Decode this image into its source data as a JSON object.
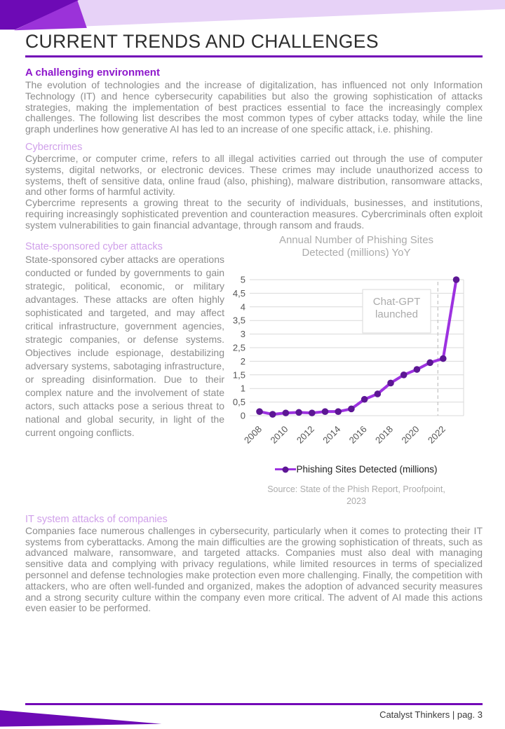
{
  "header": {
    "title": "CURRENT TRENDS AND CHALLENGES"
  },
  "sections": [
    {
      "heading": "A challenging environment",
      "paragraphs": [
        "The evolution of technologies and the increase of digitalization, has influenced not only Information Technology (IT) and hence cybersecurity capabilities but also the growing sophistication of attacks strategies, making the implementation of best practices essential to face the increasingly complex challenges. The following list describes the most common types of cyber attacks today, while the line graph underlines how generative AI has led to an increase of one specific attack, i.e. phishing."
      ]
    },
    {
      "heading": "Cybercrimes",
      "paragraphs": [
        "Cybercrime, or computer crime, refers to all illegal activities carried out through the use of computer systems, digital networks, or electronic devices. These crimes may include unauthorized access to systems, theft of sensitive data, online fraud (also, phishing), malware distribution, ransomware attacks, and other forms of harmful activity.",
        "Cybercrime represents a growing threat to the security of individuals, businesses, and institutions, requiring increasingly sophisticated prevention and counteraction measures. Cybercriminals often exploit system vulnerabilities to gain financial advantage, through ransom and frauds."
      ]
    },
    {
      "heading": "State-sponsored cyber attacks",
      "paragraphs": [
        "State-sponsored cyber attacks are operations conducted or funded by governments to gain strategic, political, economic, or military advantages. These attacks are often highly sophisticated and targeted, and may affect critical infrastructure, government agencies, strategic companies, or defense systems. Objectives include espionage, destabilizing adversary systems, sabotaging infrastructure, or spreading disinformation. Due to their complex nature and the involvement of state actors, such attacks pose a serious threat to national and global security, in light of the current ongoing conflicts."
      ]
    },
    {
      "heading": "IT system attacks of companies",
      "paragraphs": [
        "Companies face numerous challenges in cybersecurity, particularly when it comes to protecting their IT systems from cyberattacks. Among the main difficulties are the growing sophistication of threats, such as advanced malware, ransomware, and targeted attacks. Companies must also deal with managing sensitive data and complying with privacy regulations, while limited resources in terms of specialized personnel and defense technologies make protection even more challenging. Finally, the competition with attackers, who are often well-funded and organized, makes the adoption of advanced security measures and a strong security culture within the company even more critical. The advent of AI made this actions even easier to be performed."
      ]
    }
  ],
  "chart_data": {
    "type": "line",
    "title_lines": [
      "Annual Number of Phishing Sites",
      "Detected (millions) YoY"
    ],
    "x": [
      2008,
      2009,
      2010,
      2011,
      2012,
      2013,
      2014,
      2015,
      2016,
      2017,
      2018,
      2019,
      2020,
      2021,
      2022,
      2023
    ],
    "series": [
      {
        "name": "Phishing Sites Detected (millions)",
        "values": [
          0.15,
          0.05,
          0.1,
          0.12,
          0.1,
          0.15,
          0.15,
          0.25,
          0.6,
          0.8,
          1.2,
          1.5,
          1.7,
          1.95,
          2.1,
          5.0
        ]
      }
    ],
    "ylim": [
      0,
      5
    ],
    "ytick_step": 0.5,
    "ytick_labels": [
      "0",
      "0,5",
      "1",
      "1,5",
      "2",
      "2,5",
      "3",
      "3,5",
      "4",
      "4,5",
      "5"
    ],
    "xtick_labels": [
      "2008",
      "2010",
      "2012",
      "2014",
      "2016",
      "2018",
      "2020",
      "2022"
    ],
    "grid": true,
    "annotation": {
      "lines": [
        "Chat-GPT",
        "launched"
      ],
      "vline_year": 2021.6
    },
    "legend": "Phishing Sites Detected (millions)",
    "legend_position": "bottom",
    "source_lines": [
      "Source: State of the Phish Report, Proofpoint,",
      "2023"
    ],
    "colors": {
      "line": "#9d32e0",
      "marker": "#5c1694",
      "grid": "#d9d9d9",
      "dashed_line": "#cccccc",
      "axis_label": "#555555",
      "annotation_text": "#ababab",
      "annotation_border": "#d9d9d9"
    }
  },
  "footer": {
    "text": "Catalyst Thinkers | pag. 3"
  },
  "colors": {
    "accent_dark_purple": "#6d0ab5",
    "accent_mid_purple": "#9b32d9",
    "accent_lavender": "#e7d2f7",
    "rule_purple": "#7209b7",
    "heading_vivid": "#8e18cc",
    "heading_light": "#d0a0ea",
    "body_gray": "#8c8c8c"
  }
}
